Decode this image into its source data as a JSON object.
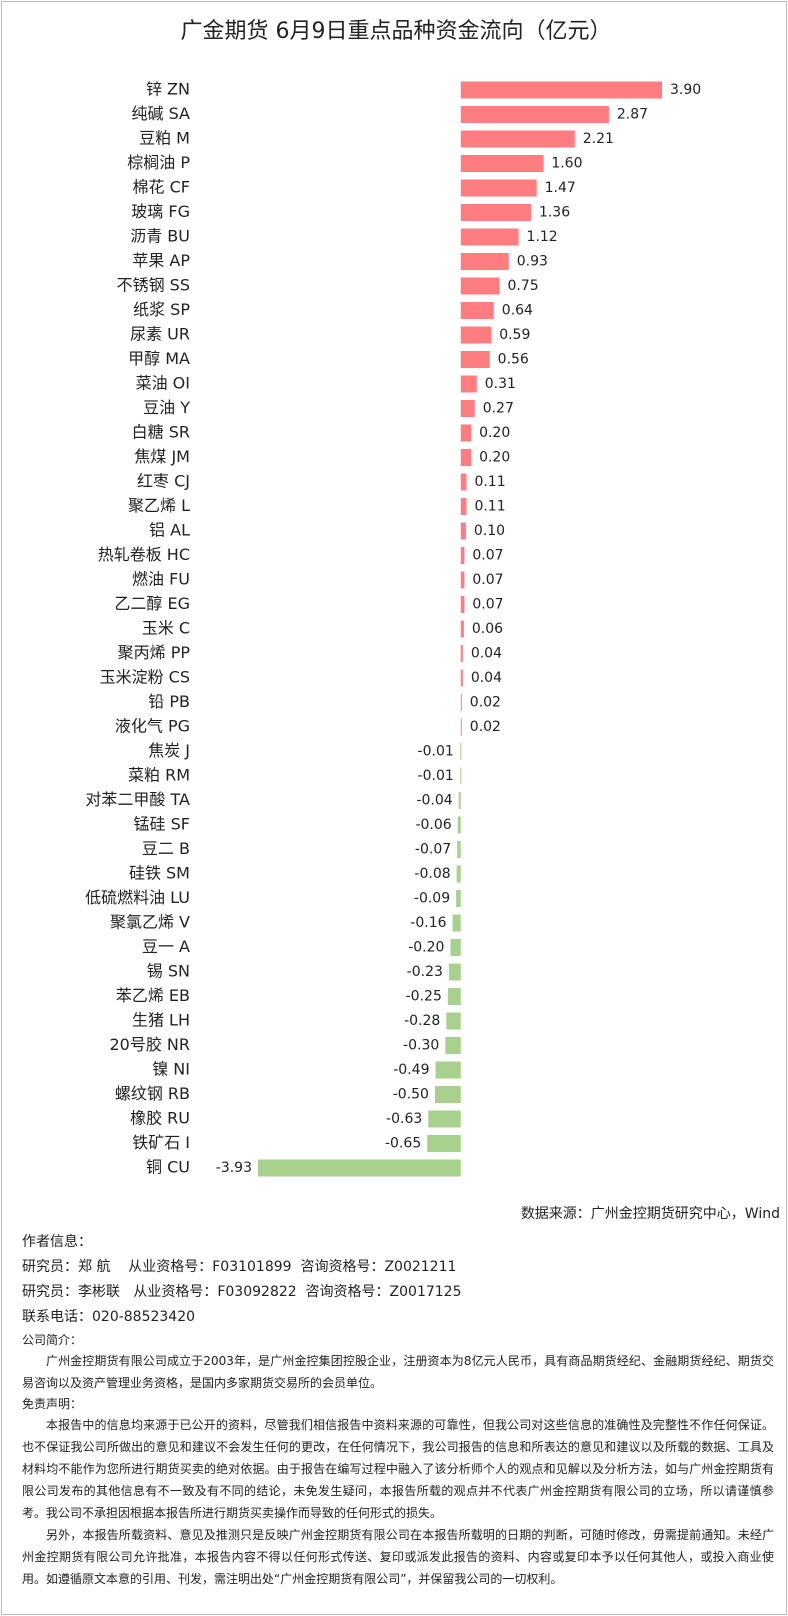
{
  "chart_data": {
    "type": "bar",
    "orientation": "horizontal",
    "title": "广金期货 6月9日重点品种资金流向（亿元）",
    "categories": [
      "锌 ZN",
      "纯碱 SA",
      "豆粕 M",
      "棕榈油 P",
      "棉花 CF",
      "玻璃 FG",
      "沥青 BU",
      "苹果 AP",
      "不锈钢 SS",
      "纸浆 SP",
      "尿素 UR",
      "甲醇 MA",
      "菜油 OI",
      "豆油 Y",
      "白糖 SR",
      "焦煤 JM",
      "红枣 CJ",
      "聚乙烯 L",
      "铝 AL",
      "热轧卷板 HC",
      "燃油 FU",
      "乙二醇 EG",
      "玉米 C",
      "聚丙烯 PP",
      "玉米淀粉 CS",
      "铅 PB",
      "液化气 PG",
      "焦炭 J",
      "菜粕 RM",
      "对苯二甲酸 TA",
      "锰硅 SF",
      "豆二 B",
      "硅铁 SM",
      "低硫燃料油 LU",
      "聚氯乙烯 V",
      "豆一 A",
      "锡 SN",
      "苯乙烯 EB",
      "生猪 LH",
      "20号胶 NR",
      "镍 NI",
      "螺纹钢 RB",
      "橡胶 RU",
      "铁矿石 I",
      "铜 CU"
    ],
    "values": [
      3.9,
      2.87,
      2.21,
      1.6,
      1.47,
      1.36,
      1.12,
      0.93,
      0.75,
      0.64,
      0.59,
      0.56,
      0.31,
      0.27,
      0.2,
      0.2,
      0.11,
      0.11,
      0.1,
      0.07,
      0.07,
      0.07,
      0.06,
      0.04,
      0.04,
      0.02,
      0.02,
      -0.01,
      -0.01,
      -0.04,
      -0.06,
      -0.07,
      -0.08,
      -0.09,
      -0.16,
      -0.2,
      -0.23,
      -0.25,
      -0.28,
      -0.3,
      -0.49,
      -0.5,
      -0.63,
      -0.65,
      -3.93
    ],
    "value_labels": [
      "3.90",
      "2.87",
      "2.21",
      "1.60",
      "1.47",
      "1.36",
      "1.12",
      "0.93",
      "0.75",
      "0.64",
      "0.59",
      "0.56",
      "0.31",
      "0.27",
      "0.20",
      "0.20",
      "0.11",
      "0.11",
      "0.10",
      "0.07",
      "0.07",
      "0.07",
      "0.06",
      "0.04",
      "0.04",
      "0.02",
      "0.02",
      "-0.01",
      "-0.01",
      "-0.04",
      "-0.06",
      "-0.07",
      "-0.08",
      "-0.09",
      "-0.16",
      "-0.20",
      "-0.23",
      "-0.25",
      "-0.28",
      "-0.30",
      "-0.49",
      "-0.50",
      "-0.63",
      "-0.65",
      "-3.93"
    ],
    "color_positive": "#ff7c80",
    "color_negative": "#a9d18e",
    "source": "数据来源：广州金控期货研究中心，Wind"
  },
  "notes": {
    "author_heading": "作者信息：",
    "researchers": [
      "研究员：郑 航    从业资格号：F03101899  咨询资格号：Z0021211",
      "研究员：李彬联   从业资格号：F03092822  咨询资格号：Z0017125"
    ],
    "phone": "联系电话：020-88523420",
    "company_heading": "公司简介：",
    "company_text": "广州金控期货有限公司成立于2003年，是广州金控集团控股企业，注册资本为8亿元人民币，具有商品期货经纪、金融期货经纪、期货交易咨询以及资产管理业务资格，是国内多家期货交易所的会员单位。",
    "disclaimer_heading": "免责声明：",
    "disclaimer": [
      "本报告中的信息均来源于已公开的资料，尽管我们相信报告中资料来源的可靠性，但我公司对这些信息的准确性及完整性不作任何保证。也不保证我公司所做出的意见和建议不会发生任何的更改，在任何情况下，我公司报告的信息和所表达的意见和建议以及所载的数据、工具及材料均不能作为您所进行期货买卖的绝对依据。由于报告在编写过程中融入了该分析师个人的观点和见解以及分析方法，如与广州金控期货有限公司发布的其他信息有不一致及有不同的结论，未免发生疑问，本报告所载的观点并不代表广州金控期货有限公司的立场，所以请谨慎参考。我公司不承担因根据本报告所进行期货买卖操作而导致的任何形式的损失。",
      "另外，本报告所载资料、意见及推测只是反映广州金控期货有限公司在本报告所载明的日期的判断，可随时修改，毋需提前通知。未经广州金控期货有限公司允许批准，本报告内容不得以任何形式传送、复印或派发此报告的资料、内容或复印本予以任何其他人，或投入商业使用。如遵循原文本意的引用、刊发，需注明出处“广州金控期货有限公司”，并保留我公司的一切权利。"
    ]
  }
}
